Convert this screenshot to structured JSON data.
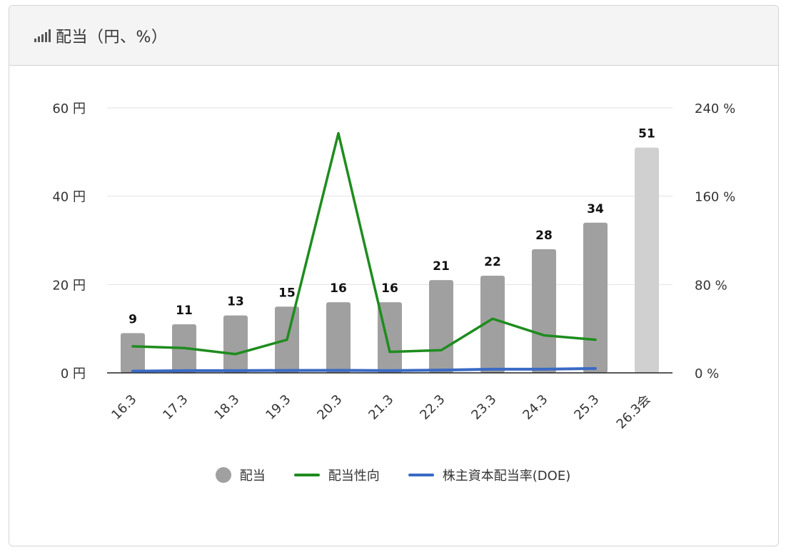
{
  "header": {
    "title": "配当（円、%）",
    "icon": "signal-bars-icon"
  },
  "chart_data": {
    "type": "bar",
    "categories": [
      "16.3",
      "17.3",
      "18.3",
      "19.3",
      "20.3",
      "21.3",
      "22.3",
      "23.3",
      "24.3",
      "25.3",
      "26.3会"
    ],
    "series": [
      {
        "name": "配当",
        "kind": "bar",
        "axis": "left",
        "color": "#a0a0a0",
        "forecast_color": "#d0d0d0",
        "values": [
          9,
          11,
          13,
          15,
          16,
          16,
          21,
          22,
          28,
          34,
          51
        ],
        "labels": [
          "9",
          "11",
          "13",
          "15",
          "16",
          "16",
          "21",
          "22",
          "28",
          "34",
          "51"
        ]
      },
      {
        "name": "配当性向",
        "kind": "line",
        "axis": "right",
        "color": "#1e8c1e",
        "values": [
          24,
          22.5,
          17,
          30,
          217,
          19,
          20.5,
          49,
          34,
          30,
          null
        ]
      },
      {
        "name": "株主資本配当率(DOE)",
        "kind": "line",
        "axis": "right",
        "color": "#3a6ac4",
        "values": [
          1.5,
          2,
          2,
          2.2,
          2.3,
          2,
          2.5,
          3.3,
          3.3,
          4,
          null
        ]
      }
    ],
    "y_left": {
      "min": 0,
      "max": 60,
      "ticks": [
        0,
        20,
        40,
        60
      ],
      "tick_labels": [
        "0 円",
        "20 円",
        "40 円",
        "60 円"
      ]
    },
    "y_right": {
      "min": 0,
      "max": 240,
      "ticks": [
        0,
        80,
        160,
        240
      ],
      "tick_labels": [
        "0 %",
        "80 %",
        "160 %",
        "240 %"
      ]
    },
    "grid": true,
    "legend_position": "bottom"
  }
}
